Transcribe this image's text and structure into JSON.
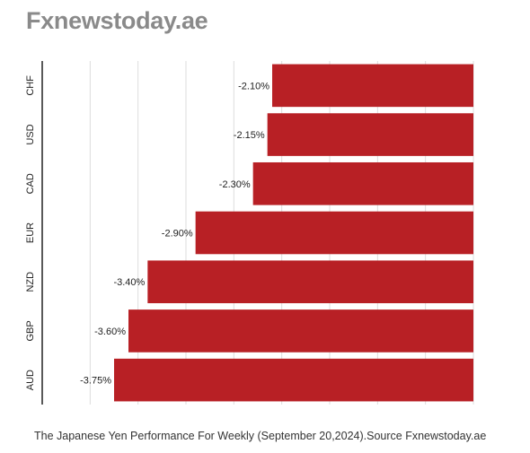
{
  "header": {
    "brand": "Fxnewstoday.ae"
  },
  "caption": "The Japanese Yen Performance For Weekly (September 20,2024).Source Fxnewstoday.ae",
  "colors": {
    "bar": "#b82025",
    "grid": "#dddddd",
    "axis": "#222222",
    "label": "#222222"
  },
  "chart_data": {
    "type": "bar",
    "orientation": "horizontal",
    "categories": [
      "CHF",
      "USD",
      "CAD",
      "EUR",
      "NZD",
      "GBP",
      "AUD"
    ],
    "values": [
      -2.1,
      -2.15,
      -2.3,
      -2.9,
      -3.4,
      -3.6,
      -3.75
    ],
    "data_labels": [
      "-2.10%",
      "-2.15%",
      "-2.30%",
      "-2.90%",
      "-3.40%",
      "-3.60%",
      "-3.75%"
    ],
    "xlim": [
      -4.5,
      0
    ],
    "grid": true,
    "legend": "none"
  }
}
